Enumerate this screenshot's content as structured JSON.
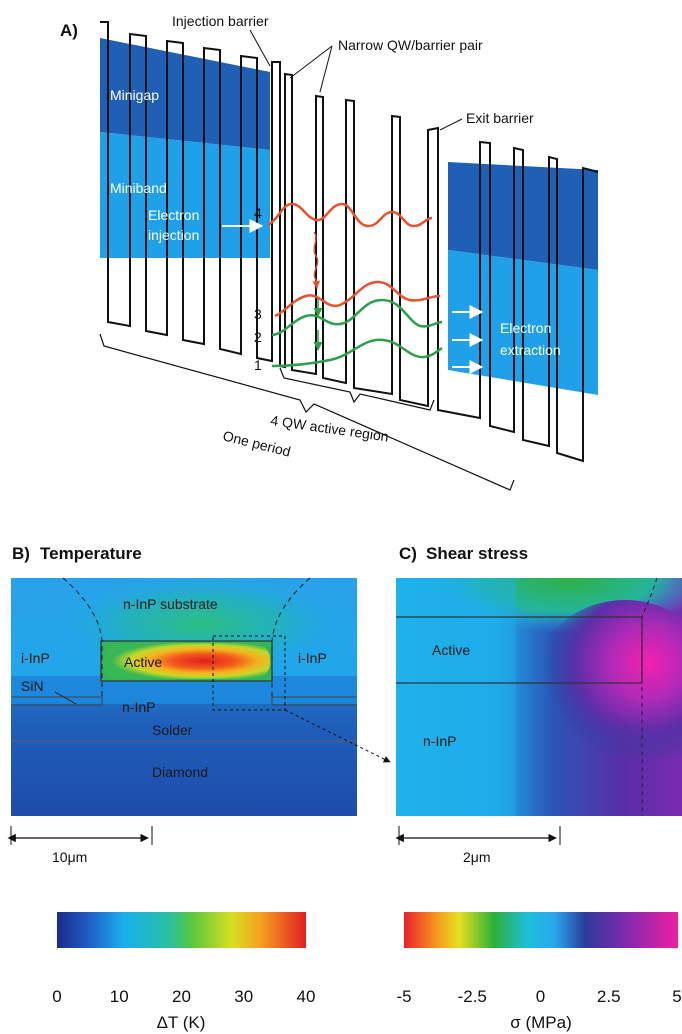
{
  "panel_a": {
    "letter": "A)",
    "labels": {
      "injection_barrier": "Injection barrier",
      "narrow_pair": "Narrow QW/barrier pair",
      "exit_barrier": "Exit barrier",
      "minigap": "Minigap",
      "miniband": "Miniband",
      "electron": "Electron",
      "injection": "injection",
      "electron2": "Electron",
      "extraction": "extraction",
      "active_region": "4 QW active region",
      "one_period": "One period"
    },
    "levels": [
      "4",
      "3",
      "2",
      "1"
    ],
    "colors": {
      "minigap": "#1f5fb5",
      "miniband": "#1fa0e8",
      "upper_state": "#e8512e",
      "lower_state": "#2e9e4a"
    }
  },
  "panel_b": {
    "letter": "B)",
    "title": "Temperature",
    "regions": {
      "substrate": "n-InP substrate",
      "iinp_left": "i-InP",
      "iinp_right": "i-InP",
      "active": "Active",
      "ninp": "n-InP",
      "sin": "SiN",
      "solder": "Solder",
      "diamond": "Diamond"
    },
    "scale_label": "10μm",
    "colorbar": {
      "ticks": [
        "0",
        "10",
        "20",
        "30",
        "40"
      ],
      "label": "ΔT (K)",
      "range": [
        0,
        40
      ]
    }
  },
  "panel_c": {
    "letter": "C)",
    "title": "Shear stress",
    "regions": {
      "active": "Active",
      "ninp": "n-InP"
    },
    "scale_label": "2μm",
    "colorbar": {
      "ticks": [
        "-5",
        "-2.5",
        "0",
        "2.5",
        "5"
      ],
      "label": "σ (MPa)",
      "range": [
        -5,
        5
      ]
    }
  }
}
